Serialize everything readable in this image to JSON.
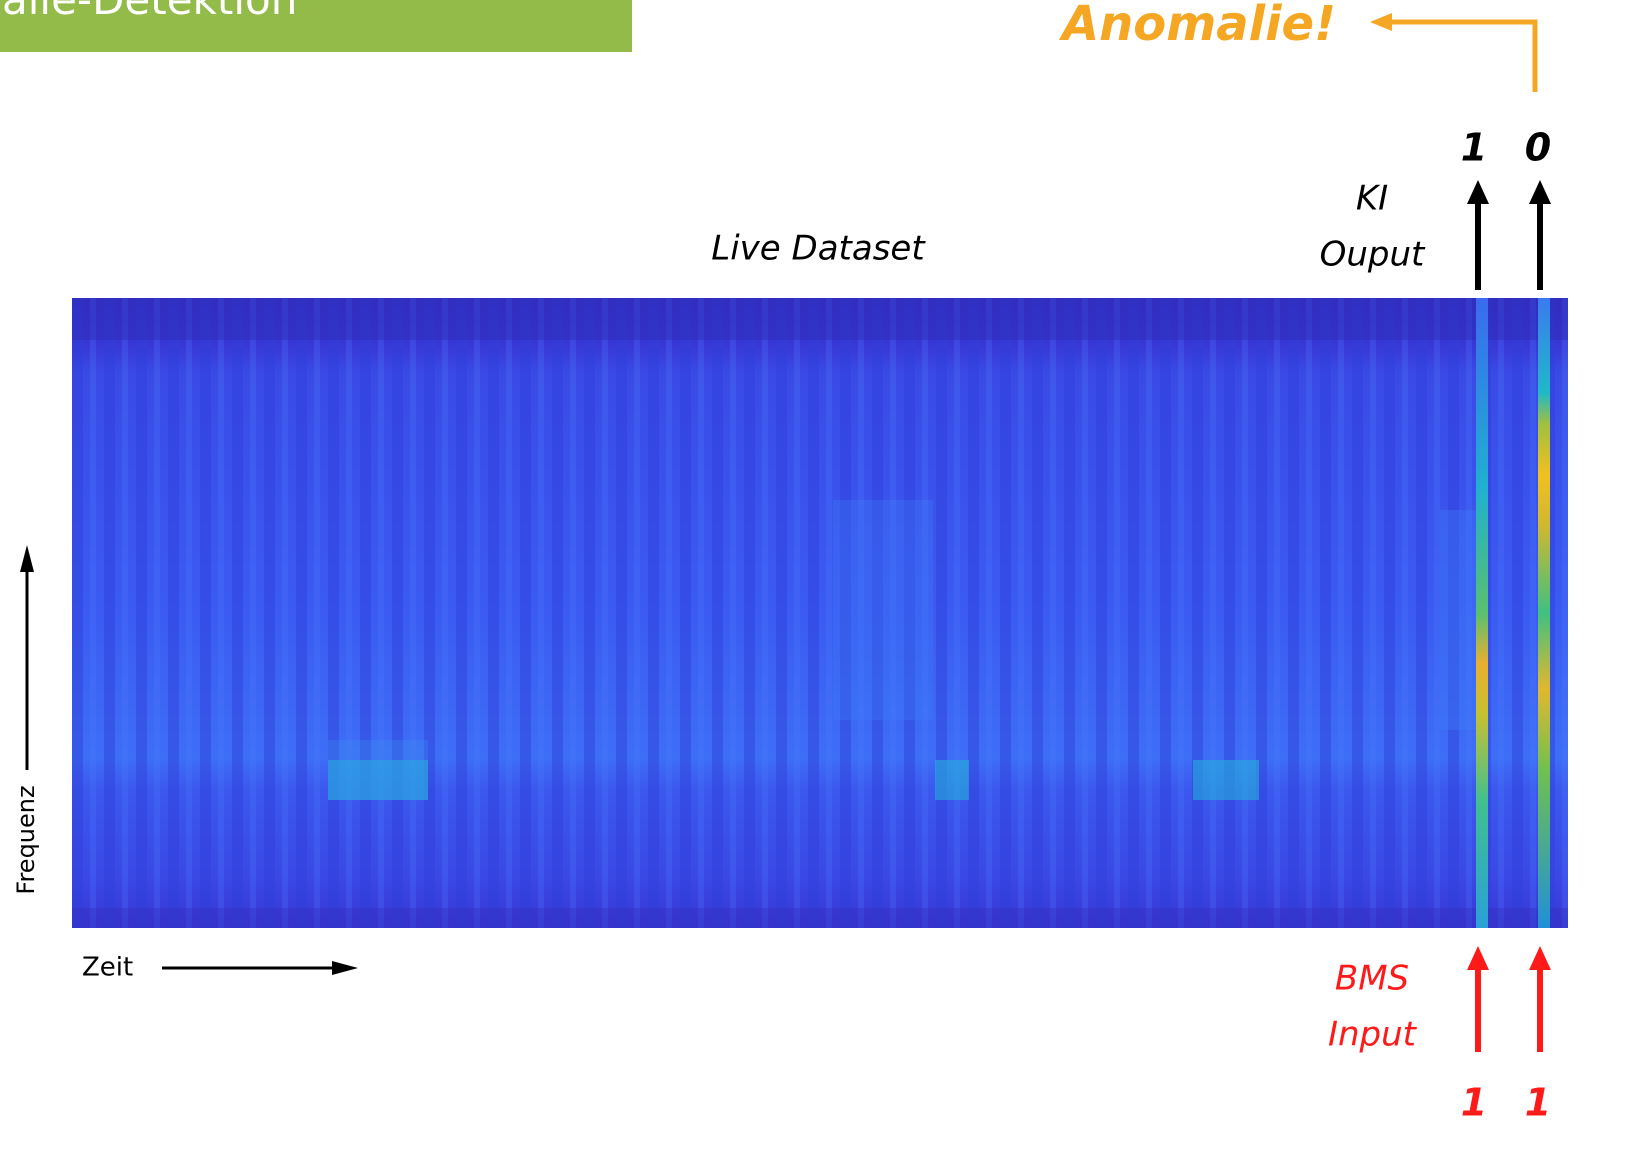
{
  "header": {
    "title": "alie-Detektion"
  },
  "alert": "Anomalie!",
  "outputs": {
    "label": [
      "KI",
      "Ouput"
    ],
    "values": [
      1,
      0
    ]
  },
  "dataset_label": "Live Dataset",
  "axes": {
    "y": "Frequenz",
    "x": "Zeit"
  },
  "inputs": {
    "label": [
      "BMS",
      "Input"
    ],
    "values": [
      1,
      1
    ]
  }
}
